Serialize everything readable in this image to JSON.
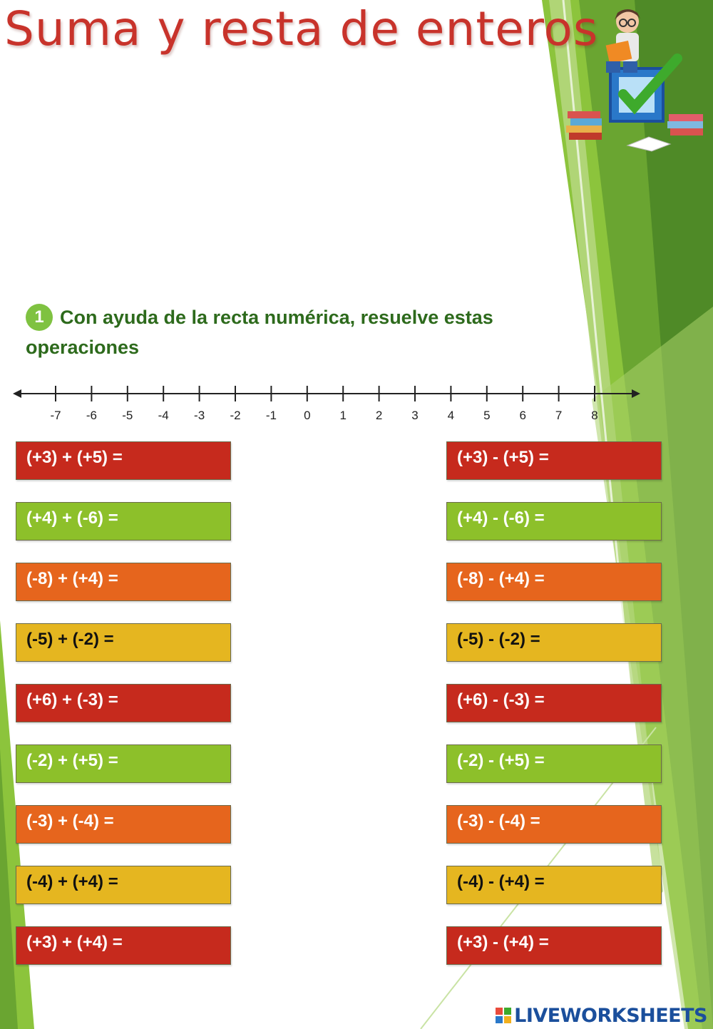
{
  "header": {
    "title": "Suma y resta de enteros"
  },
  "instruction": {
    "number": "1",
    "text": "Con ayuda de la recta numérica, resuelve estas operaciones"
  },
  "number_line": {
    "labels": [
      "-7",
      "-6",
      "-5",
      "-4",
      "-3",
      "-2",
      "-1",
      "0",
      "1",
      "2",
      "3",
      "4",
      "5",
      "6",
      "7",
      "8"
    ]
  },
  "operations": {
    "left": [
      {
        "text": "(+3) + (+5) =",
        "color": "#c62a1d"
      },
      {
        "text": "(+4) + (-6) =",
        "color": "#8dc02a"
      },
      {
        "text": "(-8) + (+4) =",
        "color": "#e6651d"
      },
      {
        "text": "(-5) + (-2) =",
        "color": "#e5b620"
      },
      {
        "text": "(+6) + (-3) =",
        "color": "#c62a1d"
      },
      {
        "text": "(-2) + (+5) =",
        "color": "#8dc02a"
      },
      {
        "text": "(-3) + (-4) =",
        "color": "#e6651d"
      },
      {
        "text": "(-4) + (+4) =",
        "color": "#e5b620"
      },
      {
        "text": "(+3) + (+4) =",
        "color": "#c62a1d"
      }
    ],
    "right": [
      {
        "text": "(+3) - (+5) =",
        "color": "#c62a1d"
      },
      {
        "text": "(+4) - (-6) =",
        "color": "#8dc02a"
      },
      {
        "text": "(-8) - (+4) =",
        "color": "#e6651d"
      },
      {
        "text": "(-5) - (-2) =",
        "color": "#e5b620"
      },
      {
        "text": "(+6) - (-3) =",
        "color": "#c62a1d"
      },
      {
        "text": "(-2) - (+5) =",
        "color": "#8dc02a"
      },
      {
        "text": "(-3) - (-4) =",
        "color": "#e6651d"
      },
      {
        "text": "(-4) - (+4) =",
        "color": "#e5b620"
      },
      {
        "text": "(+3) - (+4) =",
        "color": "#c62a1d"
      }
    ]
  },
  "footer": {
    "brand": "LIVEWORKSHEETS"
  }
}
